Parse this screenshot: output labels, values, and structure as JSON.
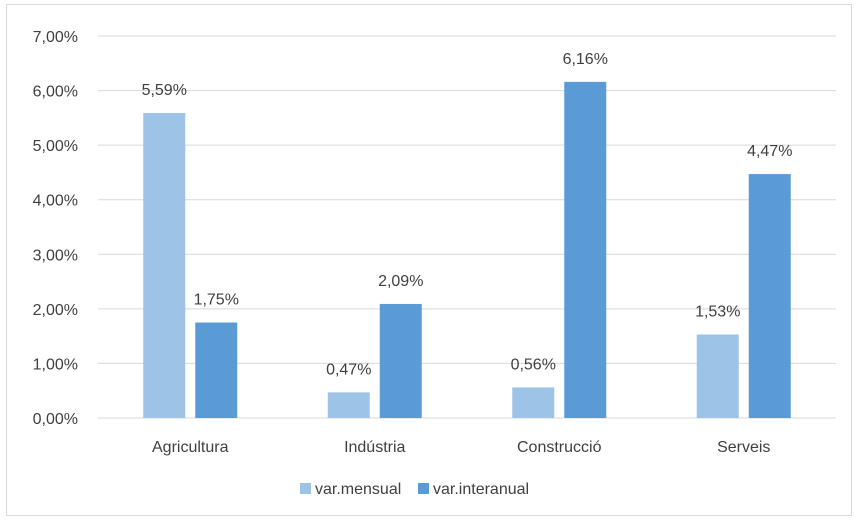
{
  "chart_data": {
    "type": "bar",
    "categories": [
      "Agricultura",
      "Indústria",
      "Construcció",
      "Serveis"
    ],
    "series": [
      {
        "name": "var.mensual",
        "values": [
          5.59,
          0.47,
          0.56,
          1.53
        ],
        "labels": [
          "5,59%",
          "0,47%",
          "0,56%",
          "1,53%"
        ],
        "color": "#9dc3e6"
      },
      {
        "name": "var.interanual",
        "values": [
          1.75,
          2.09,
          6.16,
          4.47
        ],
        "labels": [
          "1,75%",
          "2,09%",
          "6,16%",
          "4,47%"
        ],
        "color": "#5b9bd5"
      }
    ],
    "ylim": [
      0,
      7
    ],
    "yticks": [
      0,
      1,
      2,
      3,
      4,
      5,
      6,
      7
    ],
    "ytick_labels": [
      "0,00%",
      "1,00%",
      "2,00%",
      "3,00%",
      "4,00%",
      "5,00%",
      "6,00%",
      "7,00%"
    ],
    "grid": true,
    "gridline_color": "#d9d9d9",
    "legend_position": "bottom",
    "title": "",
    "xlabel": "",
    "ylabel": ""
  }
}
